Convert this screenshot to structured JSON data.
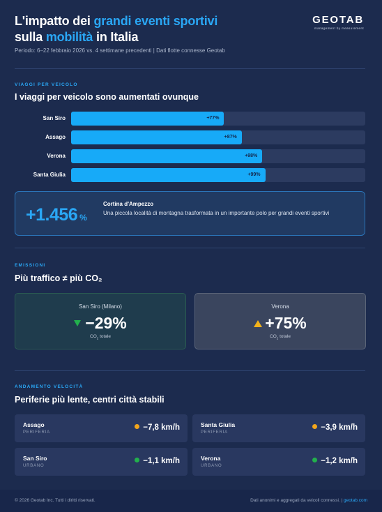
{
  "header": {
    "title_line1_pre": "L'impatto dei ",
    "title_line1_hl": "grandi eventi sportivi",
    "title_line2_pre": "sulla ",
    "title_line2_hl": "mobilità",
    "title_line2_post": " in Italia",
    "subtitle": "Periodo: 6–22 febbraio 2026 vs. 4 settimane precedenti | Dati flotte connesse Geotab",
    "logo_word": "GEOTAB",
    "logo_tagline": "management by measurement"
  },
  "trips": {
    "tag": "VIAGGI PER VEICOLO",
    "title": "I viaggi per veicolo sono aumentati ovunque",
    "bars": [
      {
        "label": "San Siro",
        "value_label": "+77%",
        "value": 77,
        "fill_fraction": 0.52
      },
      {
        "label": "Assago",
        "value_label": "+87%",
        "value": 87,
        "fill_fraction": 0.58
      },
      {
        "label": "Verona",
        "value_label": "+98%",
        "value": 98,
        "fill_fraction": 0.65
      },
      {
        "label": "Santa Giulia",
        "value_label": "+99%",
        "value": 99,
        "fill_fraction": 0.66
      }
    ],
    "highlight": {
      "number": "+1.456",
      "unit": "%",
      "title": "Cortina d'Ampezzo",
      "description": "Una piccola località di montagna trasformata in un importante polo per grandi eventi sportivi"
    }
  },
  "emissions": {
    "tag": "EMISSIONI",
    "title": "Più traffico ≠ più CO₂",
    "cards": [
      {
        "city": "San Siro (Milano)",
        "value": "−29%",
        "direction": "down",
        "sub_pre": "CO",
        "sub_subscript": "2",
        "sub_post": " totale"
      },
      {
        "city": "Verona",
        "value": "+75%",
        "direction": "up",
        "sub_pre": "CO",
        "sub_subscript": "2",
        "sub_post": " totale"
      }
    ]
  },
  "speed": {
    "tag": "ANDAMENTO VELOCITÀ",
    "title": "Periferie più lente, centri città stabili",
    "cards": [
      {
        "name": "Assago",
        "type": "PERIFERIA",
        "value": "−7,8 km/h",
        "dot_color": "#f2a51c"
      },
      {
        "name": "Santa Giulia",
        "type": "PERIFERIA",
        "value": "−3,9 km/h",
        "dot_color": "#f2a51c"
      },
      {
        "name": "San Siro",
        "type": "URBANO",
        "value": "−1,1 km/h",
        "dot_color": "#22b14c"
      },
      {
        "name": "Verona",
        "type": "URBANO",
        "value": "−1,2 km/h",
        "dot_color": "#22b14c"
      }
    ]
  },
  "footer": {
    "left": "© 2026 Geotab Inc. Tutti i diritti riservati.",
    "right_pre": "Dati anonimi e aggregati da veicoli connessi. | ",
    "right_link": "geotab.com"
  },
  "colors": {
    "background": "#1c2b4e",
    "accent": "#2aa7f5",
    "bar": "#17aaf8",
    "down": "#22b14c",
    "up": "#f2b21a"
  }
}
